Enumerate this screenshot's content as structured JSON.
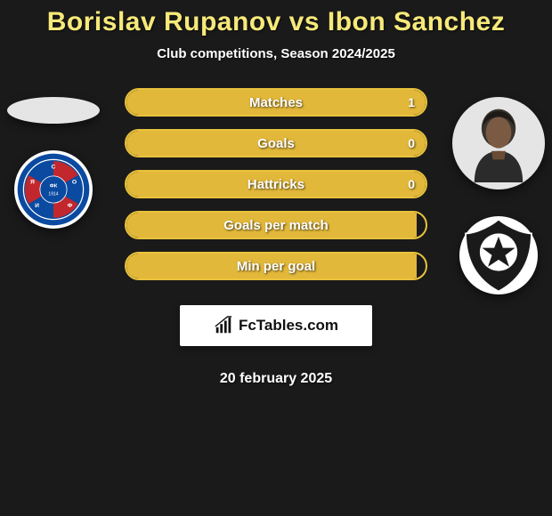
{
  "title": "Borislav Rupanov vs Ibon Sanchez",
  "subtitle": "Club competitions, Season 2024/2025",
  "date": "20 february 2025",
  "brand": "FcTables.com",
  "colors": {
    "title": "#f7e97a",
    "pill_border": "#e8c23c",
    "pill_fill": "#e2b83a",
    "background": "#1a1a1a",
    "levski_blue": "#0a4aa0",
    "levski_red": "#c1272d",
    "botafogo_bg": "#ffffff",
    "botafogo_star": "#1a1a1a"
  },
  "stats": [
    {
      "label": "Matches",
      "right_val": "1",
      "fill_pct": 100
    },
    {
      "label": "Goals",
      "right_val": "0",
      "fill_pct": 100
    },
    {
      "label": "Hattricks",
      "right_val": "0",
      "fill_pct": 100
    },
    {
      "label": "Goals per match",
      "right_val": "",
      "fill_pct": 97
    },
    {
      "label": "Min per goal",
      "right_val": "",
      "fill_pct": 97
    }
  ],
  "left": {
    "player_name": "Borislav Rupanov",
    "club_name": "Levski Sofia"
  },
  "right": {
    "player_name": "Ibon Sanchez",
    "club_name": "Botafogo"
  }
}
